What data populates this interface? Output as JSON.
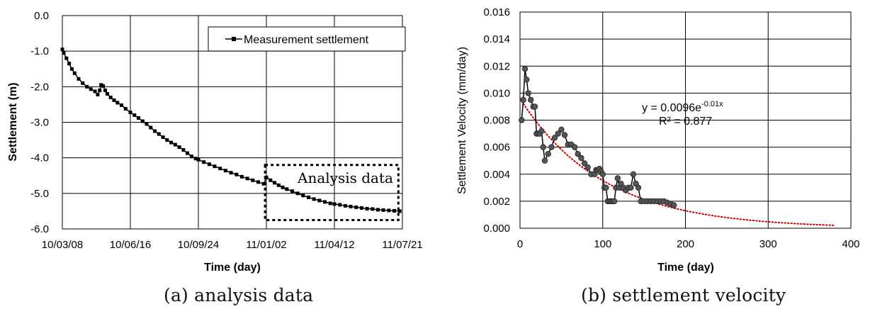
{
  "figure": {
    "caption_a": "(a) analysis data",
    "caption_b": "(b) settlement velocity"
  },
  "chart_data": [
    {
      "type": "line",
      "xlabel": "Time (day)",
      "ylabel": "Settlement (m)",
      "x_ticks": [
        "10/03/08",
        "10/06/16",
        "10/09/24",
        "11/01/02",
        "11/04/12",
        "11/07/21"
      ],
      "y_ticks": [
        "0.0",
        "-1.0",
        "-2.0",
        "-3.0",
        "-4.0",
        "-5.0",
        "-6.0"
      ],
      "xlim": [
        "2010-03-08",
        "2011-07-21"
      ],
      "ylim": [
        -6.0,
        0.0
      ],
      "grid": true,
      "legend_position": "top-right",
      "annotation": "Analysis data",
      "analysis_window": {
        "x": [
          "2010-12-31",
          "2011-07-15"
        ],
        "y": [
          -5.75,
          -4.2
        ]
      },
      "series": [
        {
          "name": "Measurement settlement",
          "marker": "square",
          "color": "#000000",
          "x": [
            "2010-03-08",
            "2010-03-10",
            "2010-03-14",
            "2010-03-18",
            "2010-03-22",
            "2010-03-26",
            "2010-04-01",
            "2010-04-07",
            "2010-04-13",
            "2010-04-19",
            "2010-04-25",
            "2010-04-29",
            "2010-05-02",
            "2010-05-04",
            "2010-05-07",
            "2010-05-10",
            "2010-05-13",
            "2010-05-18",
            "2010-05-23",
            "2010-05-28",
            "2010-06-03",
            "2010-06-09",
            "2010-06-16",
            "2010-06-22",
            "2010-06-28",
            "2010-07-04",
            "2010-07-10",
            "2010-07-16",
            "2010-07-22",
            "2010-07-28",
            "2010-08-03",
            "2010-08-09",
            "2010-08-15",
            "2010-08-21",
            "2010-08-27",
            "2010-09-02",
            "2010-09-08",
            "2010-09-14",
            "2010-09-20",
            "2010-09-24",
            "2010-10-02",
            "2010-10-10",
            "2010-10-18",
            "2010-10-26",
            "2010-11-03",
            "2010-11-11",
            "2010-11-19",
            "2010-11-27",
            "2010-12-05",
            "2010-12-13",
            "2010-12-21",
            "2010-12-29",
            "2011-01-02",
            "2011-01-08",
            "2011-01-14",
            "2011-01-20",
            "2011-01-26",
            "2011-02-01",
            "2011-02-09",
            "2011-02-17",
            "2011-02-25",
            "2011-03-05",
            "2011-03-13",
            "2011-03-21",
            "2011-03-29",
            "2011-04-06",
            "2011-04-12",
            "2011-04-20",
            "2011-04-28",
            "2011-05-06",
            "2011-05-14",
            "2011-05-22",
            "2011-05-30",
            "2011-06-07",
            "2011-06-15",
            "2011-06-23",
            "2011-07-01",
            "2011-07-09",
            "2011-07-17"
          ],
          "y": [
            -0.95,
            -1.05,
            -1.2,
            -1.35,
            -1.5,
            -1.62,
            -1.78,
            -1.9,
            -2.0,
            -2.07,
            -2.13,
            -2.22,
            -2.1,
            -1.95,
            -1.98,
            -2.1,
            -2.2,
            -2.3,
            -2.38,
            -2.45,
            -2.52,
            -2.62,
            -2.72,
            -2.8,
            -2.88,
            -2.97,
            -3.05,
            -3.15,
            -3.25,
            -3.33,
            -3.42,
            -3.5,
            -3.57,
            -3.63,
            -3.7,
            -3.78,
            -3.87,
            -3.96,
            -4.02,
            -4.05,
            -4.12,
            -4.18,
            -4.24,
            -4.3,
            -4.36,
            -4.42,
            -4.47,
            -4.53,
            -4.58,
            -4.63,
            -4.68,
            -4.73,
            -4.55,
            -4.63,
            -4.7,
            -4.77,
            -4.83,
            -4.88,
            -4.94,
            -5.0,
            -5.06,
            -5.11,
            -5.16,
            -5.2,
            -5.24,
            -5.28,
            -5.3,
            -5.32,
            -5.35,
            -5.37,
            -5.39,
            -5.41,
            -5.43,
            -5.44,
            -5.46,
            -5.47,
            -5.48,
            -5.49,
            -5.5
          ]
        }
      ]
    },
    {
      "type": "scatter",
      "xlabel": "Time (day)",
      "ylabel": "Settlement  Velocity (mm/day)",
      "x_ticks": [
        "0",
        "100",
        "200",
        "300",
        "400"
      ],
      "y_ticks": [
        "0.000",
        "0.002",
        "0.004",
        "0.006",
        "0.008",
        "0.010",
        "0.012",
        "0.014",
        "0.016"
      ],
      "xlim": [
        0,
        400
      ],
      "ylim": [
        0,
        0.016
      ],
      "grid": true,
      "trendline": {
        "equation_prefix": "y = 0.0096e",
        "equation_exponent": "-0.01x",
        "r_squared": "R² = 0.877",
        "a": 0.0096,
        "b": -0.01,
        "x_range": [
          0,
          380
        ],
        "color": "#cc0000",
        "style": "dotted"
      },
      "series": [
        {
          "marker": "circle",
          "color": "#555555",
          "x": [
            2,
            4,
            6,
            8,
            10,
            13,
            16,
            18,
            20,
            22,
            24,
            26,
            28,
            30,
            34,
            38,
            42,
            46,
            50,
            54,
            58,
            62,
            66,
            70,
            74,
            78,
            82,
            86,
            90,
            92,
            94,
            96,
            98,
            100,
            102,
            104,
            106,
            108,
            110,
            112,
            114,
            116,
            118,
            120,
            122,
            125,
            128,
            131,
            134,
            137,
            140,
            143,
            146,
            150,
            154,
            158,
            162,
            166,
            170,
            174,
            178,
            182,
            186
          ],
          "y": [
            0.008,
            0.0095,
            0.0118,
            0.011,
            0.01,
            0.0095,
            0.009,
            0.009,
            0.007,
            0.007,
            0.007,
            0.0072,
            0.006,
            0.005,
            0.0055,
            0.006,
            0.0067,
            0.007,
            0.0073,
            0.0069,
            0.0062,
            0.0062,
            0.006,
            0.0055,
            0.0052,
            0.0048,
            0.0045,
            0.004,
            0.004,
            0.0043,
            0.0043,
            0.0044,
            0.0042,
            0.004,
            0.003,
            0.003,
            0.002,
            0.002,
            0.002,
            0.002,
            0.002,
            0.003,
            0.0037,
            0.003,
            0.0033,
            0.003,
            0.0028,
            0.003,
            0.003,
            0.004,
            0.0033,
            0.003,
            0.002,
            0.002,
            0.002,
            0.002,
            0.002,
            0.002,
            0.002,
            0.002,
            0.0019,
            0.0018,
            0.0017
          ]
        }
      ]
    }
  ]
}
